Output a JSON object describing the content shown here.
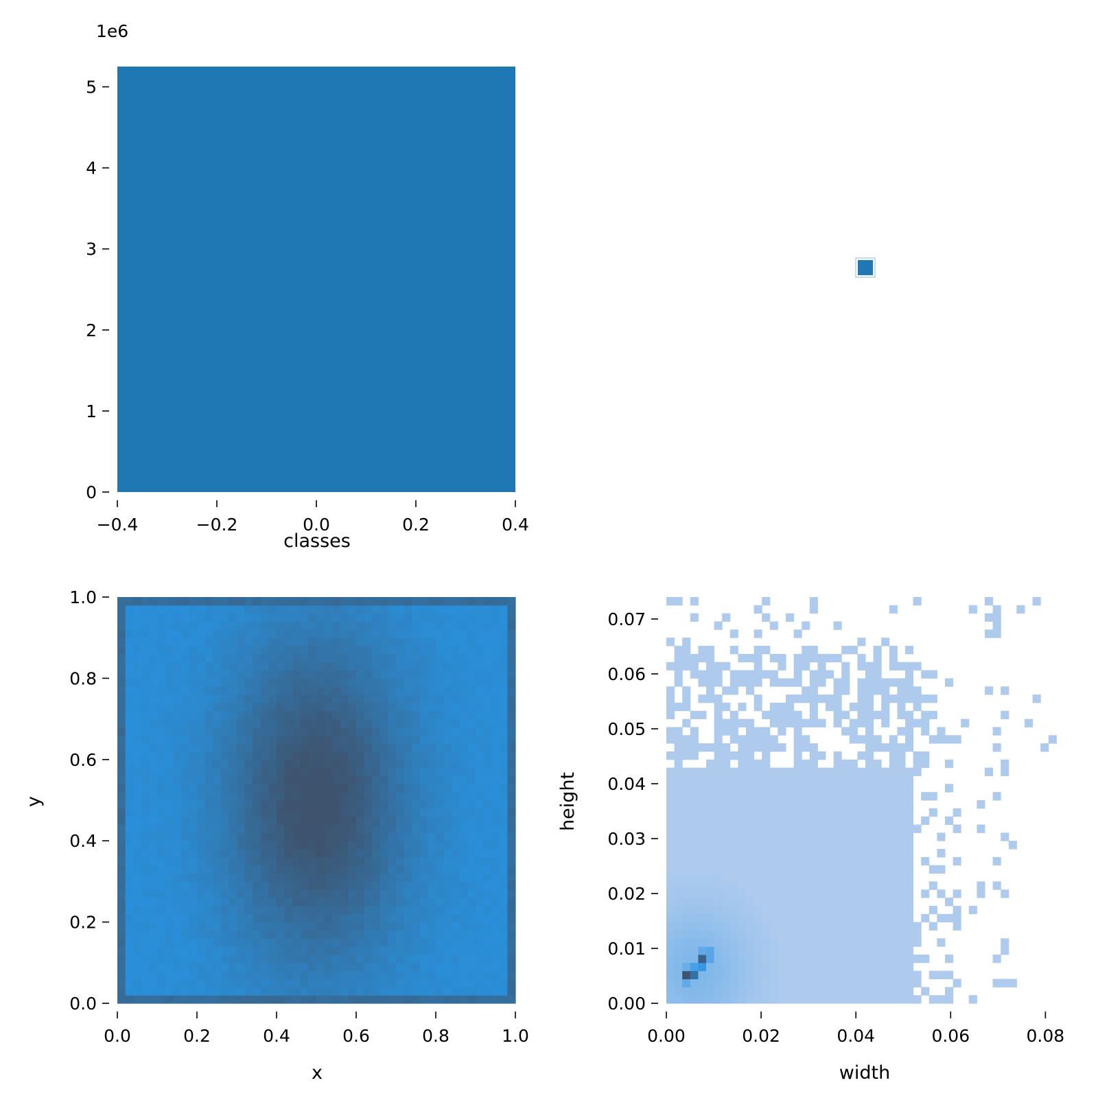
{
  "chart_data": [
    {
      "type": "bar",
      "panel": "top-left",
      "xlabel": "classes",
      "ylabel": "",
      "offset_text": "1e6",
      "categories": [
        0
      ],
      "values": [
        5250000
      ],
      "xlim": [
        -0.4,
        0.4
      ],
      "ylim": [
        0,
        5250000
      ],
      "xticks": [
        -0.4,
        -0.2,
        0.0,
        0.2,
        0.4
      ],
      "xtick_labels": [
        "−0.4",
        "−0.2",
        "0.0",
        "0.2",
        "0.4"
      ],
      "yticks": [
        0,
        1000000,
        2000000,
        3000000,
        4000000,
        5000000
      ],
      "ytick_labels": [
        "0",
        "1",
        "2",
        "3",
        "4",
        "5"
      ],
      "color": "#1f77b4",
      "grid": false
    },
    {
      "type": "heatmap",
      "panel": "top-right",
      "xlabel": "",
      "ylabel": "",
      "points": [
        {
          "x": 0.0,
          "y": 0.0,
          "level": 1
        }
      ],
      "color": "#1f77b4"
    },
    {
      "type": "heatmap",
      "panel": "bottom-left",
      "xlabel": "x",
      "ylabel": "y",
      "bins": 50,
      "xlim": [
        0.0,
        1.0
      ],
      "ylim": [
        0.0,
        1.0
      ],
      "xticks": [
        0.0,
        0.2,
        0.4,
        0.6,
        0.8,
        1.0
      ],
      "xtick_labels": [
        "0.0",
        "0.2",
        "0.4",
        "0.6",
        "0.8",
        "1.0"
      ],
      "yticks": [
        0.0,
        0.2,
        0.4,
        0.6,
        0.8,
        1.0
      ],
      "ytick_labels": [
        "0.0",
        "0.2",
        "0.4",
        "0.6",
        "0.8",
        "1.0"
      ],
      "density_center": [
        0.5,
        0.5
      ],
      "density_spread": [
        0.16,
        0.28
      ],
      "color_low": "#2a8fd8",
      "color_high": "#3e536d",
      "grid": false
    },
    {
      "type": "heatmap",
      "panel": "bottom-right",
      "xlabel": "width",
      "ylabel": "height",
      "bins": 50,
      "xlim": [
        0.0,
        0.084
      ],
      "ylim": [
        0.0,
        0.074
      ],
      "xticks": [
        0.0,
        0.02,
        0.04,
        0.06,
        0.08
      ],
      "xtick_labels": [
        "0.00",
        "0.02",
        "0.04",
        "0.06",
        "0.08"
      ],
      "yticks": [
        0.0,
        0.01,
        0.02,
        0.03,
        0.04,
        0.05,
        0.06,
        0.07
      ],
      "ytick_labels": [
        "0.00",
        "0.01",
        "0.02",
        "0.03",
        "0.04",
        "0.05",
        "0.06",
        "0.07"
      ],
      "density_peak": [
        0.006,
        0.006
      ],
      "hot_cells": [
        {
          "x": 0.004,
          "y": 0.005,
          "level": 1.0
        },
        {
          "x": 0.006,
          "y": 0.005,
          "level": 0.9
        },
        {
          "x": 0.008,
          "y": 0.008,
          "level": 0.95
        },
        {
          "x": 0.008,
          "y": 0.006,
          "level": 0.7
        },
        {
          "x": 0.005,
          "y": 0.007,
          "level": 0.55
        },
        {
          "x": 0.006,
          "y": 0.006,
          "level": 0.6
        },
        {
          "x": 0.01,
          "y": 0.01,
          "level": 0.5
        },
        {
          "x": 0.008,
          "y": 0.01,
          "level": 0.45
        },
        {
          "x": 0.01,
          "y": 0.008,
          "level": 0.5
        },
        {
          "x": 0.004,
          "y": 0.004,
          "level": 0.45
        },
        {
          "x": 0.004,
          "y": 0.007,
          "level": 0.4
        }
      ],
      "color_low": "#aecbee",
      "color_mid": "#2590e2",
      "color_high": "#3e536d",
      "grid": false
    }
  ]
}
